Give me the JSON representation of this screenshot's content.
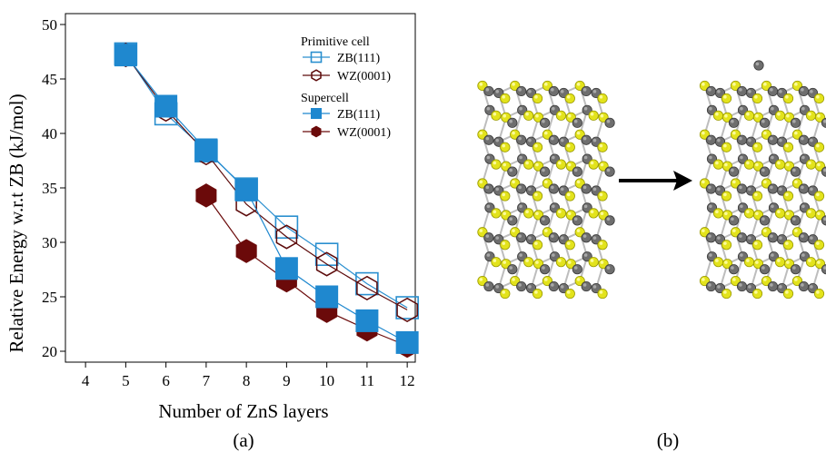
{
  "panels": {
    "a_label": "(a)",
    "b_label": "(b)"
  },
  "chart_data": {
    "type": "line",
    "title": "",
    "xlabel": "Number of ZnS layers",
    "ylabel": "Relative Energy w.r.t ZB (kJ/mol)",
    "xlim": [
      3.5,
      12.2
    ],
    "ylim": [
      19,
      51
    ],
    "xticks": [
      4,
      5,
      6,
      7,
      8,
      9,
      10,
      11,
      12
    ],
    "yticks": [
      20,
      25,
      30,
      35,
      40,
      45,
      50
    ],
    "grid": false,
    "legend_position": "top-right",
    "legend_groups": [
      {
        "title": "Primitive cell",
        "series": [
          0,
          1
        ]
      },
      {
        "title": "Supercell",
        "series": [
          2,
          3
        ]
      }
    ],
    "series": [
      {
        "name": "ZB(111)",
        "group": "Primitive cell",
        "marker": "square-open",
        "color": "#2a8fcf",
        "x": [
          5,
          6,
          7,
          8,
          9,
          10,
          11,
          12
        ],
        "y": [
          47.3,
          41.8,
          38.4,
          34.9,
          31.4,
          28.9,
          26.2,
          24.0
        ]
      },
      {
        "name": "WZ(0001)",
        "group": "Primitive cell",
        "marker": "hexagon-open",
        "color": "#5c0a0a",
        "x": [
          5,
          6,
          7,
          8,
          9,
          10,
          11,
          12
        ],
        "y": [
          47.2,
          42.2,
          38.2,
          33.5,
          30.5,
          28.0,
          25.8,
          23.8
        ]
      },
      {
        "name": "ZB(111)",
        "group": "Supercell",
        "marker": "square-filled",
        "color": "#1f88cf",
        "x": [
          5,
          6,
          7,
          8,
          9,
          10,
          11,
          12
        ],
        "y": [
          47.2,
          42.5,
          38.5,
          34.8,
          27.6,
          25.0,
          22.8,
          20.8
        ]
      },
      {
        "name": "WZ(0001)",
        "group": "Supercell",
        "marker": "hexagon-filled",
        "color": "#6b0a0a",
        "x": [
          7,
          8,
          9,
          10,
          11,
          12
        ],
        "y": [
          34.3,
          29.2,
          26.5,
          23.7,
          22.0,
          20.5
        ]
      }
    ]
  },
  "structure_panel": {
    "arrow": "right-arrow",
    "atom_colors": {
      "zinc": "#6e6e6e",
      "sulfur": "#e3e31c",
      "bond": "#bdbdbd"
    },
    "left_structure": "zns-slab-initial",
    "right_structure": "zns-slab-relaxed"
  }
}
